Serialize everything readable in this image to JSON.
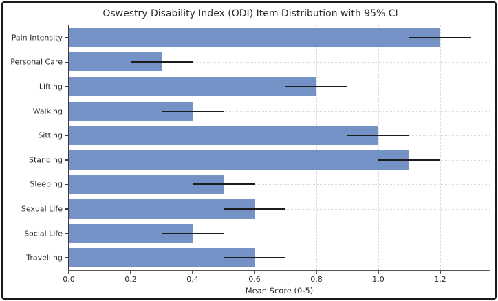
{
  "chart_data": {
    "type": "bar",
    "orientation": "horizontal",
    "title": "Oswestry Disability Index (ODI) Item Distribution with 95% CI",
    "xlabel": "Mean Score (0-5)",
    "ylabel": "",
    "categories": [
      "Pain Intensity",
      "Personal Care",
      "Lifting",
      "Walking",
      "Sitting",
      "Standing",
      "Sleeping",
      "Sexual Life",
      "Social Life",
      "Travelling"
    ],
    "values": [
      1.2,
      0.3,
      0.8,
      0.4,
      1.0,
      1.1,
      0.5,
      0.6,
      0.4,
      0.6
    ],
    "ci_low": [
      1.1,
      0.2,
      0.7,
      0.3,
      0.9,
      1.0,
      0.4,
      0.5,
      0.3,
      0.5
    ],
    "ci_high": [
      1.3,
      0.4,
      0.9,
      0.5,
      1.1,
      1.2,
      0.6,
      0.7,
      0.5,
      0.7
    ],
    "xtick_labels": [
      "0.0",
      "0.2",
      "0.4",
      "0.6",
      "0.8",
      "1.0",
      "1.2"
    ],
    "xtick_values": [
      0.0,
      0.2,
      0.4,
      0.6,
      0.8,
      1.0,
      1.2
    ],
    "xlim": [
      0,
      1.36
    ],
    "grid": "dashed-vertical-and-dotted-horizontal",
    "legend": "none",
    "bar_color": "#7492c6",
    "error_bar_color": "#1c1c1c",
    "spine_color": "#3a3a3a",
    "text_color": "#2b2b2b"
  }
}
